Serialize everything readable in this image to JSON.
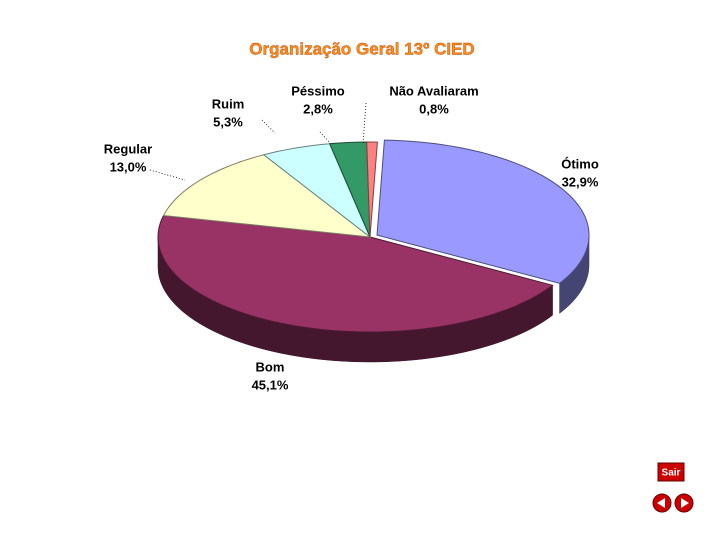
{
  "chart_data": {
    "type": "pie",
    "title": "Organização Geral 13º CIED",
    "categories": [
      "Ótimo",
      "Bom",
      "Regular",
      "Ruim",
      "Péssimo",
      "Não Avaliaram"
    ],
    "values": [
      32.9,
      45.1,
      13.0,
      5.3,
      2.8,
      0.8
    ],
    "value_labels": [
      "32,9%",
      "45,1%",
      "13,0%",
      "5,3%",
      "2,8%",
      "0,8%"
    ],
    "colors": [
      "#9999ff",
      "#993366",
      "#ffffcc",
      "#ccffff",
      "#339966",
      "#ff8080"
    ]
  },
  "navigation": {
    "exit": "Sair"
  }
}
